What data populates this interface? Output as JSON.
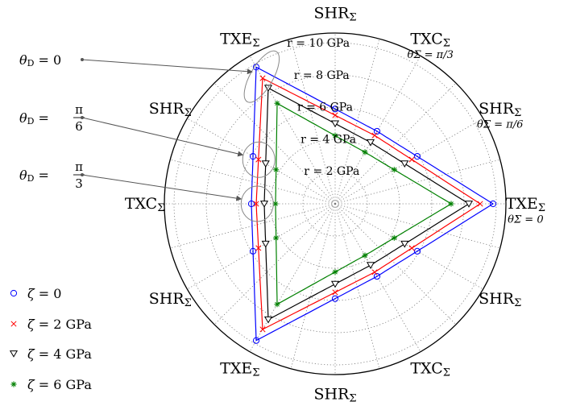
{
  "chart_data": {
    "type": "line",
    "coordinate_system": "polar",
    "grid": true,
    "radial_axis": {
      "unit": "GPa",
      "ticks": [
        2,
        4,
        6,
        8,
        10
      ],
      "tick_labels": [
        "r = 2 GPa",
        "r = 4 GPa",
        "r = 6 GPa",
        "r = 8 GPa",
        "r = 10 GPa"
      ],
      "range": [
        0,
        10.6
      ]
    },
    "angular_labels": [
      {
        "angle_deg": 0,
        "label": "TXE",
        "sub": "Σ",
        "note": "θΣ = 0"
      },
      {
        "angle_deg": 30,
        "label": "SHR",
        "sub": "Σ",
        "note": "θΣ = π/6"
      },
      {
        "angle_deg": 60,
        "label": "TXC",
        "sub": "Σ",
        "note": "θΣ = π/3"
      },
      {
        "angle_deg": 90,
        "label": "SHR",
        "sub": "Σ",
        "note": ""
      },
      {
        "angle_deg": 120,
        "label": "TXE",
        "sub": "Σ",
        "note": ""
      },
      {
        "angle_deg": 150,
        "label": "SHR",
        "sub": "Σ",
        "note": ""
      },
      {
        "angle_deg": 180,
        "label": "TXC",
        "sub": "Σ",
        "note": ""
      },
      {
        "angle_deg": 210,
        "label": "SHR",
        "sub": "Σ",
        "note": ""
      },
      {
        "angle_deg": 240,
        "label": "TXE",
        "sub": "Σ",
        "note": ""
      },
      {
        "angle_deg": 270,
        "label": "SHR",
        "sub": "Σ",
        "note": ""
      },
      {
        "angle_deg": 300,
        "label": "TXC",
        "sub": "Σ",
        "note": ""
      },
      {
        "angle_deg": 330,
        "label": "SHR",
        "sub": "Σ",
        "note": ""
      }
    ],
    "series": [
      {
        "name": "ζ = 0",
        "marker": "circle",
        "color": "#0000ff",
        "r_TXE": 9.8,
        "r_TXC": 5.2
      },
      {
        "name": "ζ = 2 GPa",
        "marker": "x",
        "color": "#ff0000",
        "r_TXE": 9.0,
        "r_TXC": 4.9
      },
      {
        "name": "ζ = 4 GPa",
        "marker": "triangle-down",
        "color": "#000000",
        "r_TXE": 8.3,
        "r_TXC": 4.4
      },
      {
        "name": "ζ = 6 GPa",
        "marker": "star",
        "color": "#008000",
        "r_TXE": 7.2,
        "r_TXC": 3.7
      }
    ],
    "annotations": [
      {
        "label": "θD = 0",
        "theta": "θ",
        "sub": "D",
        "rhs": "0",
        "angle_deg": 120
      },
      {
        "label": "θD = π/6",
        "theta": "θ",
        "sub": "D",
        "num": "π",
        "den": "6",
        "angle_deg": 150
      },
      {
        "label": "θD = π/3",
        "theta": "θ",
        "sub": "D",
        "num": "π",
        "den": "3",
        "angle_deg": 180
      }
    ]
  }
}
